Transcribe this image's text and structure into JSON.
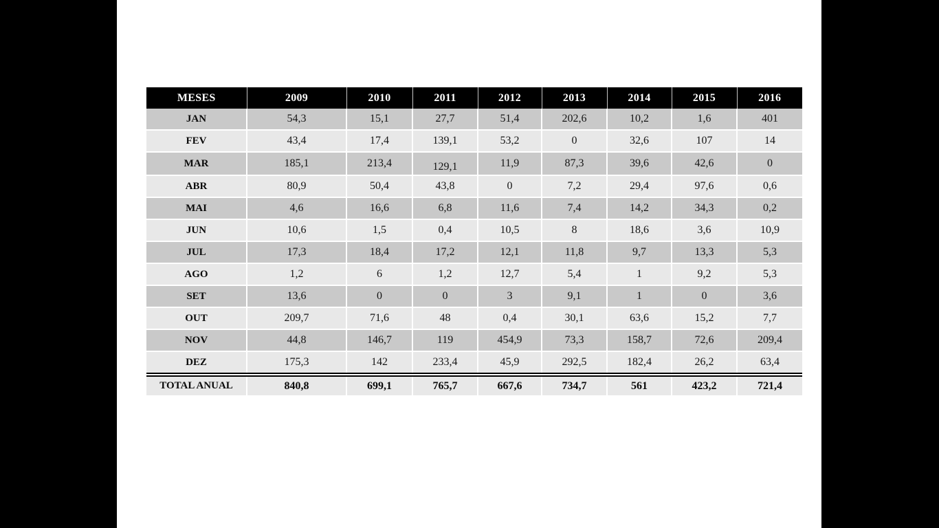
{
  "table": {
    "header": [
      "MESES",
      "2009",
      "2010",
      "2011",
      "2012",
      "2013",
      "2014",
      "2015",
      "2016"
    ],
    "rows": [
      {
        "label": "JAN",
        "values": [
          "54,3",
          "15,1",
          "27,7",
          "51,4",
          "202,6",
          "10,2",
          "1,6",
          "401"
        ]
      },
      {
        "label": "FEV",
        "values": [
          "43,4",
          "17,4",
          "139,1",
          "53,2",
          "0",
          "32,6",
          "107",
          "14"
        ]
      },
      {
        "label": "MAR",
        "values": [
          "185,1",
          "213,4",
          "129,1",
          "11,9",
          "87,3",
          "39,6",
          "42,6",
          "0"
        ]
      },
      {
        "label": "ABR",
        "values": [
          "80,9",
          "50,4",
          "43,8",
          "0",
          "7,2",
          "29,4",
          "97,6",
          "0,6"
        ]
      },
      {
        "label": "MAI",
        "values": [
          "4,6",
          "16,6",
          "6,8",
          "11,6",
          "7,4",
          "14,2",
          "34,3",
          "0,2"
        ]
      },
      {
        "label": "JUN",
        "values": [
          "10,6",
          "1,5",
          "0,4",
          "10,5",
          "8",
          "18,6",
          "3,6",
          "10,9"
        ]
      },
      {
        "label": "JUL",
        "values": [
          "17,3",
          "18,4",
          "17,2",
          "12,1",
          "11,8",
          "9,7",
          "13,3",
          "5,3"
        ]
      },
      {
        "label": "AGO",
        "values": [
          "1,2",
          "6",
          "1,2",
          "12,7",
          "5,4",
          "1",
          "9,2",
          "5,3"
        ]
      },
      {
        "label": "SET",
        "values": [
          "13,6",
          "0",
          "0",
          "3",
          "9,1",
          "1",
          "0",
          "3,6"
        ]
      },
      {
        "label": "OUT",
        "values": [
          "209,7",
          "71,6",
          "48",
          "0,4",
          "30,1",
          "63,6",
          "15,2",
          "7,7"
        ]
      },
      {
        "label": "NOV",
        "values": [
          "44,8",
          "146,7",
          "119",
          "454,9",
          "73,3",
          "158,7",
          "72,6",
          "209,4"
        ]
      },
      {
        "label": "DEZ",
        "values": [
          "175,3",
          "142",
          "233,4",
          "45,9",
          "292,5",
          "182,4",
          "26,2",
          "63,4"
        ]
      }
    ],
    "total": {
      "label": "TOTAL ANUAL",
      "values": [
        "840,8",
        "699,1",
        "765,7",
        "667,6",
        "734,7",
        "561",
        "423,2",
        "721,4"
      ]
    }
  },
  "colors": {
    "letterbox": "#000000",
    "page_bg": "#ffffff",
    "header_bg": "#000000",
    "header_text": "#ffffff",
    "row_dark": "#c9c9c9",
    "row_light": "#e8e8e8",
    "total_bg": "#e8e8e8",
    "text": "#141414"
  },
  "chart_data": {
    "type": "table",
    "row_label_header": "MESES",
    "categories": [
      "JAN",
      "FEV",
      "MAR",
      "ABR",
      "MAI",
      "JUN",
      "JUL",
      "AGO",
      "SET",
      "OUT",
      "NOV",
      "DEZ"
    ],
    "series": [
      {
        "name": "2009",
        "values": [
          54.3,
          43.4,
          185.1,
          80.9,
          4.6,
          10.6,
          17.3,
          1.2,
          13.6,
          209.7,
          44.8,
          175.3
        ],
        "total": 840.8
      },
      {
        "name": "2010",
        "values": [
          15.1,
          17.4,
          213.4,
          50.4,
          16.6,
          1.5,
          18.4,
          6,
          0,
          71.6,
          146.7,
          142
        ],
        "total": 699.1
      },
      {
        "name": "2011",
        "values": [
          27.7,
          139.1,
          129.1,
          43.8,
          6.8,
          0.4,
          17.2,
          1.2,
          0,
          48,
          119,
          233.4
        ],
        "total": 765.7
      },
      {
        "name": "2012",
        "values": [
          51.4,
          53.2,
          11.9,
          0,
          11.6,
          10.5,
          12.1,
          12.7,
          3,
          0.4,
          454.9,
          45.9
        ],
        "total": 667.6
      },
      {
        "name": "2013",
        "values": [
          202.6,
          0,
          87.3,
          7.2,
          7.4,
          8,
          11.8,
          5.4,
          9.1,
          30.1,
          73.3,
          292.5
        ],
        "total": 734.7
      },
      {
        "name": "2014",
        "values": [
          10.2,
          32.6,
          39.6,
          29.4,
          14.2,
          18.6,
          9.7,
          1,
          1,
          63.6,
          158.7,
          182.4
        ],
        "total": 561
      },
      {
        "name": "2015",
        "values": [
          1.6,
          107,
          42.6,
          97.6,
          34.3,
          3.6,
          13.3,
          9.2,
          0,
          15.2,
          72.6,
          26.2
        ],
        "total": 423.2
      },
      {
        "name": "2016",
        "values": [
          401,
          14,
          0,
          0.6,
          0.2,
          10.9,
          5.3,
          5.3,
          3.6,
          7.7,
          209.4,
          63.4
        ],
        "total": 721.4
      }
    ],
    "total_row_label": "TOTAL ANUAL",
    "decimal_separator": ",",
    "grid": true,
    "legend_position": "none"
  }
}
